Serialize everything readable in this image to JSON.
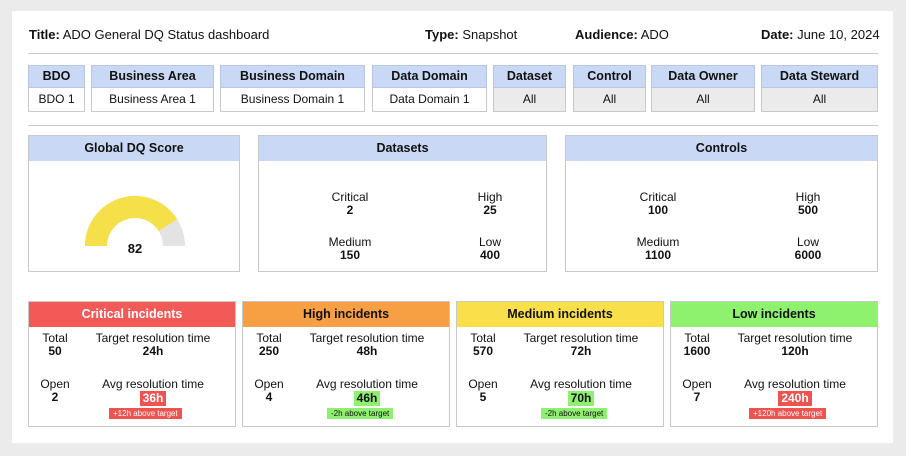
{
  "header": {
    "title_label": "Title:",
    "title_value": "ADO General DQ Status dashboard",
    "type_label": "Type:",
    "type_value": "Snapshot",
    "audience_label": "Audience:",
    "audience_value": "ADO",
    "date_label": "Date:",
    "date_value": "June 10, 2024"
  },
  "filters": [
    {
      "label": "BDO",
      "value": "BDO 1"
    },
    {
      "label": "Business Area",
      "value": "Business Area 1"
    },
    {
      "label": "Business Domain",
      "value": "Business Domain 1"
    },
    {
      "label": "Data Domain",
      "value": "Data Domain 1"
    },
    {
      "label": "Dataset",
      "value": "All"
    },
    {
      "label": "Control",
      "value": "All"
    },
    {
      "label": "Data Owner",
      "value": "All"
    },
    {
      "label": "Data Steward",
      "value": "All"
    }
  ],
  "global_score": {
    "title": "Global DQ Score",
    "value": "82",
    "fraction": 0.82,
    "fill_color": "#f5e04a",
    "track_color": "#e3e3e3"
  },
  "datasets": {
    "title": "Datasets",
    "critical_label": "Critical",
    "critical_value": "2",
    "high_label": "High",
    "high_value": "25",
    "medium_label": "Medium",
    "medium_value": "150",
    "low_label": "Low",
    "low_value": "400"
  },
  "controls": {
    "title": "Controls",
    "critical_label": "Critical",
    "critical_value": "100",
    "high_label": "High",
    "high_value": "500",
    "medium_label": "Medium",
    "medium_value": "1100",
    "low_label": "Low",
    "low_value": "6000"
  },
  "incidents": [
    {
      "title": "Critical incidents",
      "header_color": "#f25a57",
      "title_color": "#ffffff",
      "total_label": "Total",
      "total_value": "50",
      "target_label": "Target resolution time",
      "target_value": "24h",
      "open_label": "Open",
      "open_value": "2",
      "avg_label": "Avg resolution time",
      "avg_value": "36h",
      "avg_color": "#ef5350",
      "avg_text_color": "#ffffff",
      "note": "+12h above target",
      "note_color": "#ef5350",
      "note_text_color": "#ffffff"
    },
    {
      "title": "High incidents",
      "header_color": "#f7a043",
      "title_color": "#111111",
      "total_label": "Total",
      "total_value": "250",
      "target_label": "Target resolution time",
      "target_value": "48h",
      "open_label": "Open",
      "open_value": "4",
      "avg_label": "Avg resolution time",
      "avg_value": "46h",
      "avg_color": "#8fef6f",
      "avg_text_color": "#111111",
      "note": "-2h above target",
      "note_color": "#8fef6f",
      "note_text_color": "#111111"
    },
    {
      "title": "Medium incidents",
      "header_color": "#f9e04a",
      "title_color": "#111111",
      "total_label": "Total",
      "total_value": "570",
      "target_label": "Target resolution time",
      "target_value": "72h",
      "open_label": "Open",
      "open_value": "5",
      "avg_label": "Avg resolution time",
      "avg_value": "70h",
      "avg_color": "#8fef6f",
      "avg_text_color": "#111111",
      "note": "-2h above target",
      "note_color": "#8fef6f",
      "note_text_color": "#111111"
    },
    {
      "title": "Low incidents",
      "header_color": "#8ef26f",
      "title_color": "#111111",
      "total_label": "Total",
      "total_value": "1600",
      "target_label": "Target resolution time",
      "target_value": "120h",
      "open_label": "Open",
      "open_value": "7",
      "avg_label": "Avg resolution time",
      "avg_value": "240h",
      "avg_color": "#ef5350",
      "avg_text_color": "#ffffff",
      "note": "+120h above target",
      "note_color": "#ef5350",
      "note_text_color": "#ffffff"
    }
  ]
}
